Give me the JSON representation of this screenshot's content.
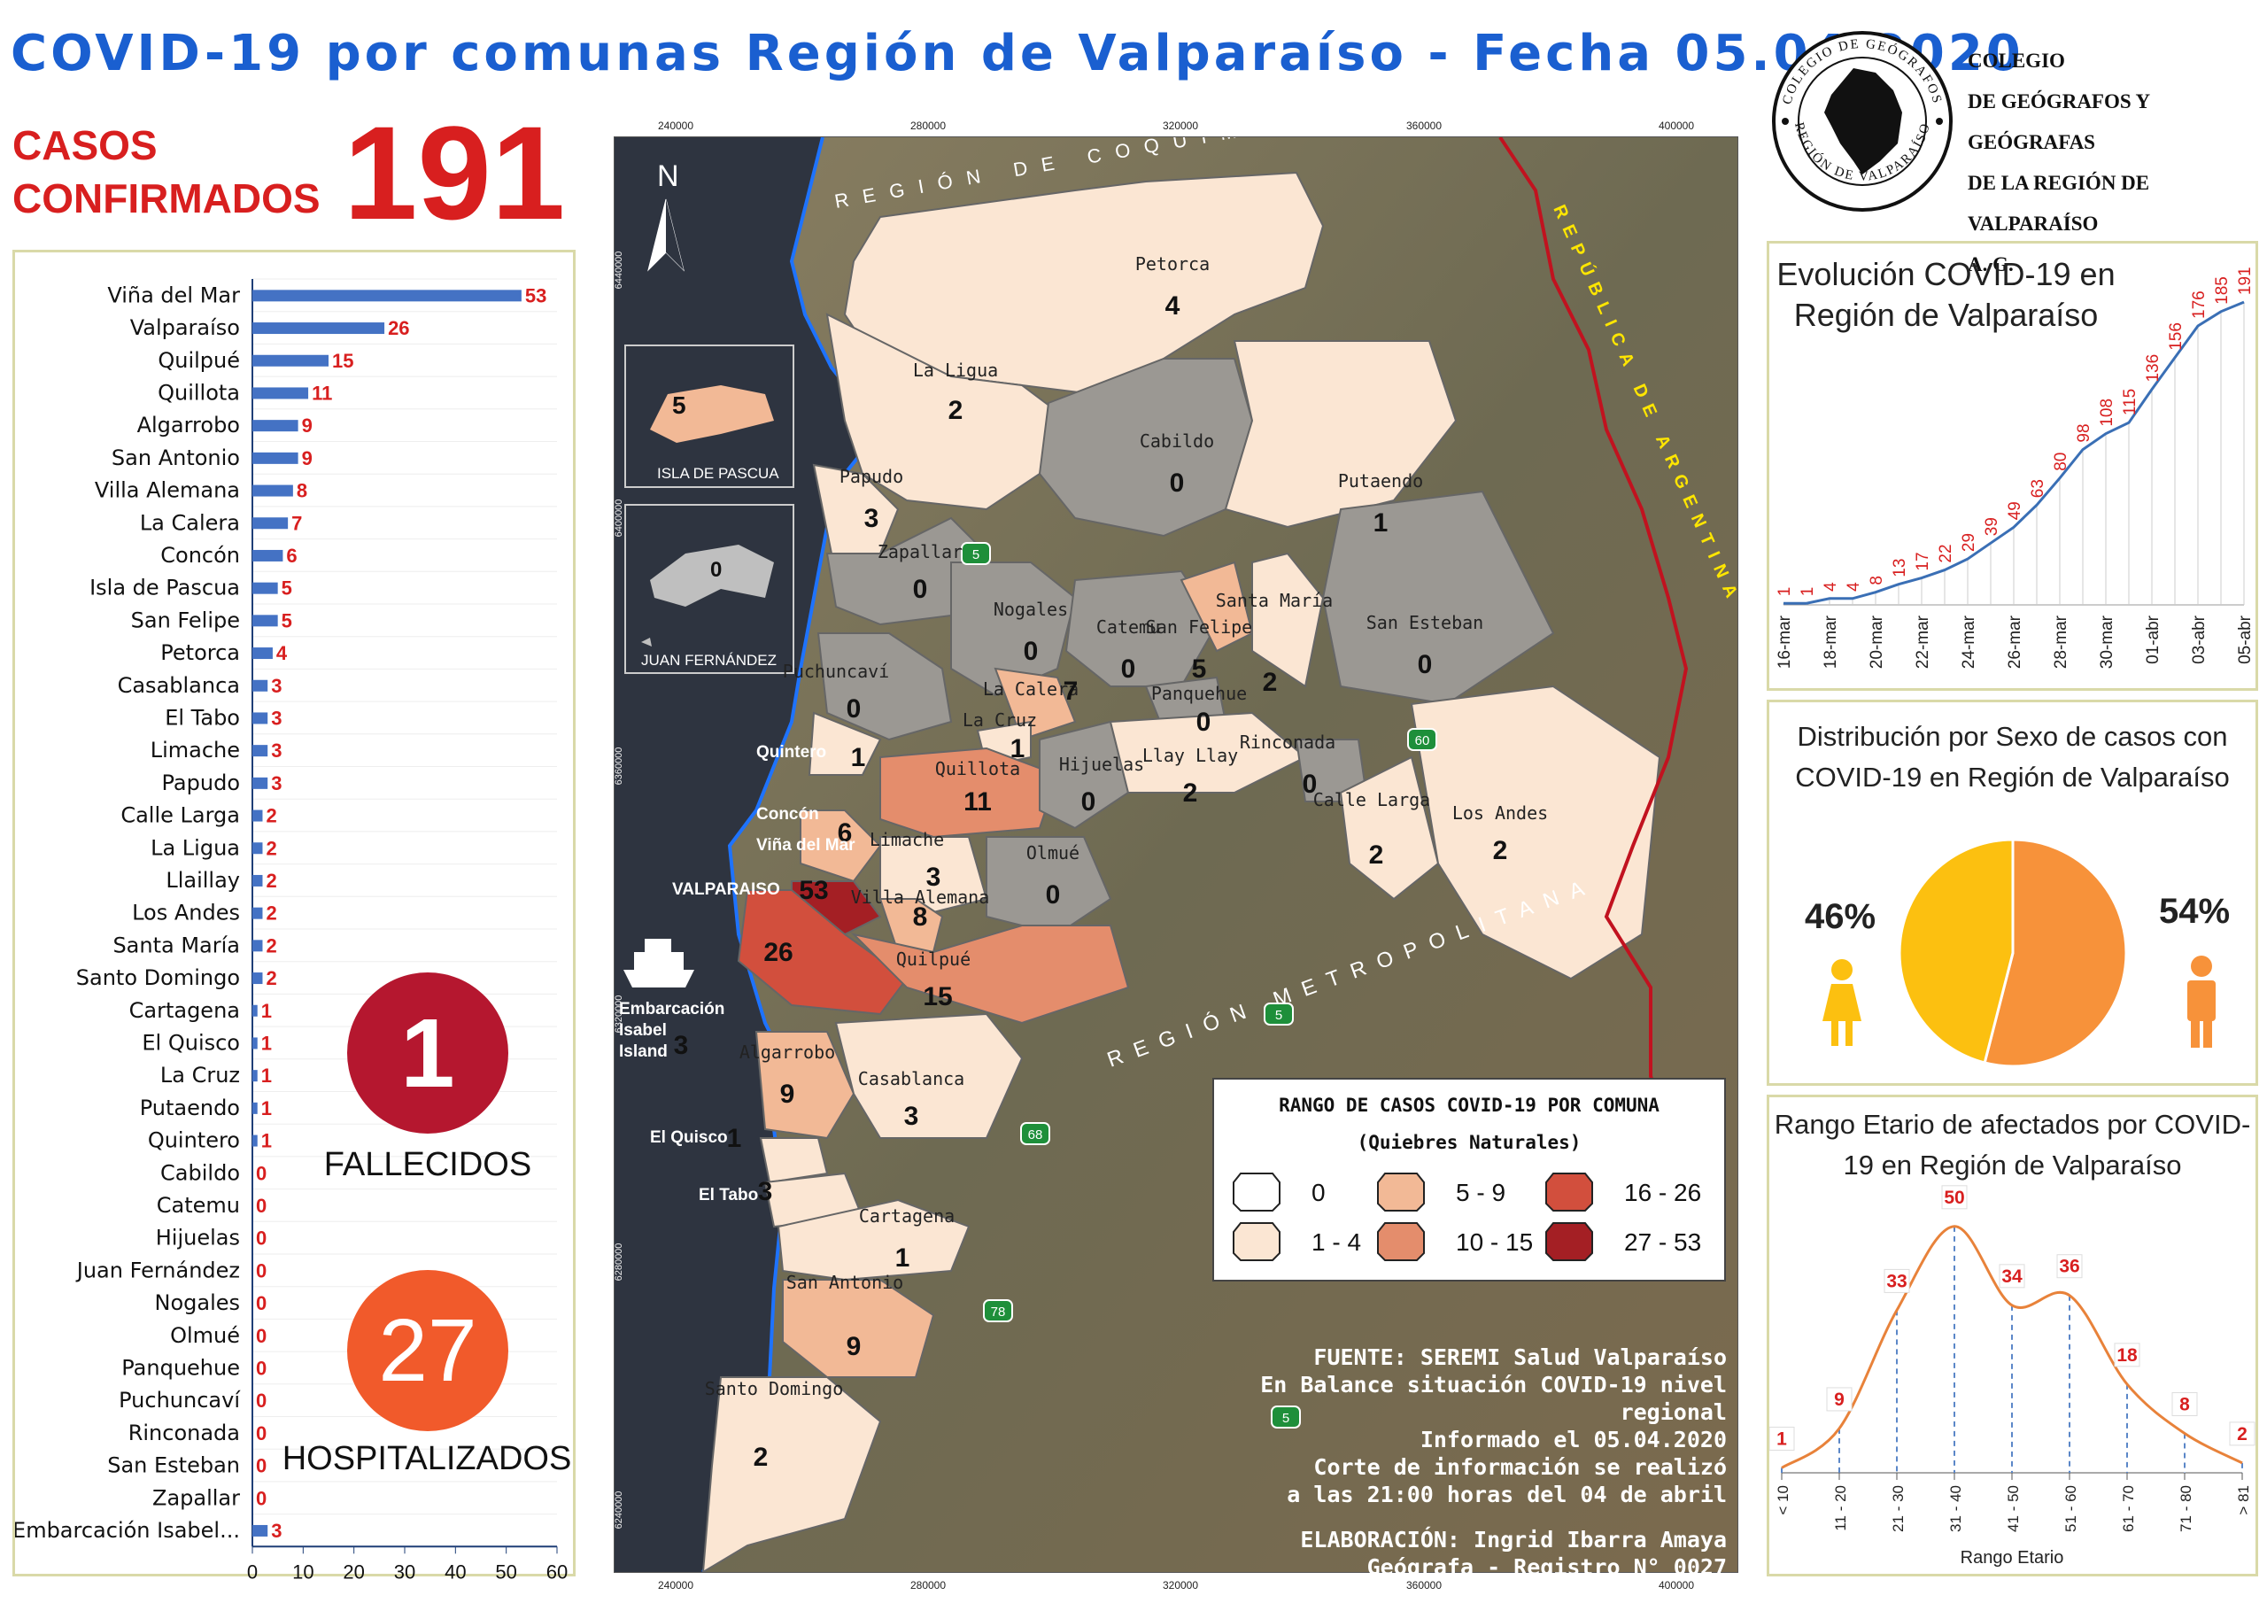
{
  "header": {
    "title": "COVID-19 por comunas Región de Valparaíso - Fecha 05.04.2020",
    "casos_label_1": "CASOS",
    "casos_label_2": "CONFIRMADOS",
    "casos_total": "191"
  },
  "logo": {
    "line1": "COLEGIO",
    "line2": "DE GEÓGRAFOS Y GEÓGRAFAS",
    "line3": "DE LA REGIÓN DE VALPARAÍSO",
    "line4": "A. G.",
    "ring_text_top": "COLEGIO DE GEÓGRAFOS",
    "ring_text_bottom": "REGIÓN DE VALPARAÍSO"
  },
  "stats": {
    "fallecidos_value": "1",
    "fallecidos_label": "FALLECIDOS",
    "hospitalizados_value": "27",
    "hospitalizados_label": "HOSPITALIZADOS",
    "fallecidos_color": "#b5172f",
    "hospitalizados_color": "#f15a2b"
  },
  "map": {
    "easting_ticks": [
      "240000",
      "280000",
      "320000",
      "360000",
      "400000"
    ],
    "northing_ticks": [
      "6440000",
      "6400000",
      "6360000",
      "6320000",
      "6280000",
      "6240000"
    ],
    "north_label": "N",
    "inset_pascua": "ISLA DE PASCUA",
    "inset_pascua_value": "5",
    "inset_juan": "JUAN FERNÁNDEZ",
    "inset_juan_value": "0",
    "region_coquimbo": "REGIÓN DE COQUIMBO",
    "region_metropolitana": "REGIÓN METROPOLITANA",
    "argentina": "REPÚBLICA DE ARGENTINA",
    "comunas": [
      {
        "name": "Petorca",
        "value": "4"
      },
      {
        "name": "La Ligua",
        "value": "2"
      },
      {
        "name": "Cabildo",
        "value": "0"
      },
      {
        "name": "Putaendo",
        "value": "1"
      },
      {
        "name": "Papudo",
        "value": "3"
      },
      {
        "name": "Zapallar",
        "value": "0"
      },
      {
        "name": "Nogales",
        "value": "0"
      },
      {
        "name": "Catemu",
        "value": "0"
      },
      {
        "name": "San Felipe",
        "value": "5"
      },
      {
        "name": "Santa María",
        "value": "2"
      },
      {
        "name": "San Esteban",
        "value": "0"
      },
      {
        "name": "Puchuncaví",
        "value": "0"
      },
      {
        "name": "La Calera",
        "value": "7"
      },
      {
        "name": "Panquehue",
        "value": "0"
      },
      {
        "name": "La Cruz",
        "value": "1"
      },
      {
        "name": "Quintero",
        "value": "1"
      },
      {
        "name": "Quillota",
        "value": "11"
      },
      {
        "name": "Hijuelas",
        "value": "0"
      },
      {
        "name": "Llay Llay",
        "value": "2"
      },
      {
        "name": "Rinconada",
        "value": "0"
      },
      {
        "name": "Calle Larga",
        "value": "2"
      },
      {
        "name": "Los Andes",
        "value": "2"
      },
      {
        "name": "Concón",
        "value": "6"
      },
      {
        "name": "Viña del Mar",
        "value": "53"
      },
      {
        "name": "Limache",
        "value": "3"
      },
      {
        "name": "Olmué",
        "value": "0"
      },
      {
        "name": "VALPARAISO",
        "value": "26"
      },
      {
        "name": "Villa Alemana",
        "value": "8"
      },
      {
        "name": "Quilpué",
        "value": "15"
      },
      {
        "name": "Embarcación Isabel Island",
        "value": "3"
      },
      {
        "name": "Algarrobo",
        "value": "9"
      },
      {
        "name": "Casablanca",
        "value": "3"
      },
      {
        "name": "El Quisco",
        "value": "1"
      },
      {
        "name": "El Tabo",
        "value": "3"
      },
      {
        "name": "Cartagena",
        "value": "1"
      },
      {
        "name": "San Antonio",
        "value": "9"
      },
      {
        "name": "Santo Domingo",
        "value": "2"
      }
    ],
    "routes": [
      "5",
      "60",
      "5",
      "68",
      "78",
      "5"
    ],
    "legend": {
      "title": "RANGO DE CASOS COVID-19 POR COMUNA",
      "subtitle": "(Quiebres Naturales)",
      "items": [
        {
          "label": "0",
          "color": "#ffffff"
        },
        {
          "label": "1 - 4",
          "color": "#fbe6d3"
        },
        {
          "label": "5 - 9",
          "color": "#f2b996"
        },
        {
          "label": "10 - 15",
          "color": "#e48d6c"
        },
        {
          "label": "16 - 26",
          "color": "#d24f3d"
        },
        {
          "label": "27 - 53",
          "color": "#a41f24"
        }
      ]
    },
    "credits": {
      "line1": "FUENTE: SEREMI Salud Valparaíso",
      "line2": "En Balance situación COVID-19 nivel regional",
      "line3": "Informado el 05.04.2020",
      "line4": "Corte de información se realizó",
      "line5": "a las 21:00 horas del 04 de abril",
      "line6": "ELABORACIÓN: Ingrid Ibarra Amaya",
      "line7": "Geógrafa - Registro N° 0027"
    }
  },
  "sex_chart": {
    "title": "Distribución por Sexo de casos con COVID-19 en Región de Valparaíso",
    "female_pct": "46%",
    "male_pct": "54%",
    "female_color": "#fcc010",
    "male_color": "#f7923a"
  },
  "chart_data": [
    {
      "type": "bar",
      "orientation": "horizontal",
      "categories": [
        "Viña del Mar",
        "Valparaíso",
        "Quilpué",
        "Quillota",
        "Algarrobo",
        "San Antonio",
        "Villa Alemana",
        "La Calera",
        "Concón",
        "Isla de Pascua",
        "San Felipe",
        "Petorca",
        "Casablanca",
        "El Tabo",
        "Limache",
        "Papudo",
        "Calle Larga",
        "La Ligua",
        "Llaillay",
        "Los Andes",
        "Santa María",
        "Santo Domingo",
        "Cartagena",
        "El Quisco",
        "La Cruz",
        "Putaendo",
        "Quintero",
        "Cabildo",
        "Catemu",
        "Hijuelas",
        "Juan Fernández",
        "Nogales",
        "Olmué",
        "Panquehue",
        "Puchuncaví",
        "Rinconada",
        "San Esteban",
        "Zapallar",
        "Embarcación Isabel..."
      ],
      "values": [
        53,
        26,
        15,
        11,
        9,
        9,
        8,
        7,
        6,
        5,
        5,
        4,
        3,
        3,
        3,
        3,
        2,
        2,
        2,
        2,
        2,
        2,
        1,
        1,
        1,
        1,
        1,
        0,
        0,
        0,
        0,
        0,
        0,
        0,
        0,
        0,
        0,
        0,
        3
      ],
      "xlim": [
        0,
        60
      ],
      "xticks": [
        "0",
        "10",
        "20",
        "30",
        "40",
        "50",
        "60"
      ],
      "bar_color": "#4472c4",
      "value_label_color": "#d81f1f"
    },
    {
      "type": "line",
      "title": "Evolución COVID-19 en Región de Valparaíso",
      "x": [
        "16-mar",
        "17-mar",
        "18-mar",
        "19-mar",
        "20-mar",
        "21-mar",
        "22-mar",
        "23-mar",
        "24-mar",
        "25-mar",
        "26-mar",
        "27-mar",
        "28-mar",
        "29-mar",
        "30-mar",
        "31-mar",
        "01-abr",
        "02-abr",
        "03-abr",
        "04-abr",
        "05-abr"
      ],
      "xtick_labels": [
        "16-mar",
        "18-mar",
        "20-mar",
        "22-mar",
        "24-mar",
        "26-mar",
        "28-mar",
        "30-mar",
        "01-abr",
        "03-abr",
        "05-abr"
      ],
      "values": [
        1,
        1,
        4,
        4,
        8,
        13,
        17,
        22,
        29,
        39,
        49,
        63,
        80,
        98,
        108,
        115,
        136,
        156,
        176,
        185,
        191
      ],
      "ylim": [
        0,
        200
      ],
      "line_color": "#3a6fb5",
      "label_color": "#d81f1f"
    },
    {
      "type": "pie",
      "title": "Distribución por Sexo de casos con COVID-19 en Región de Valparaíso",
      "labels": [
        "Mujeres",
        "Hombres"
      ],
      "values": [
        46,
        54
      ],
      "colors": [
        "#fcc010",
        "#f7923a"
      ]
    },
    {
      "type": "line",
      "title": "Rango Etario de afectados por COVID-19 en Región de Valparaíso",
      "xlabel": "Rango Etario",
      "categories": [
        "< 10",
        "11 - 20",
        "21 - 30",
        "31 - 40",
        "41 - 50",
        "51 - 60",
        "61 - 70",
        "71 - 80",
        "> 81"
      ],
      "values": [
        1,
        9,
        33,
        50,
        34,
        36,
        18,
        8,
        2
      ],
      "ylim": [
        0,
        55
      ],
      "line_color": "#e8823a",
      "label_color": "#d81f1f"
    }
  ]
}
